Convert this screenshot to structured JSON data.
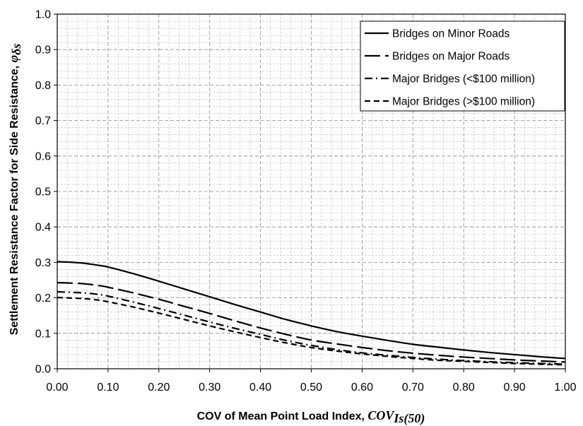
{
  "chart_data": {
    "type": "line",
    "xlabel": "COV of Mean Point Load Index, ",
    "xlabel_symbol": "COV",
    "xlabel_subscript": "Is(50)",
    "ylabel": "Settlement Resistance Factor for Side Resistance, ",
    "ylabel_symbol": "φ",
    "ylabel_subscript": "δs",
    "xlim": [
      0,
      1
    ],
    "ylim": [
      0,
      1
    ],
    "x_ticks": [
      "0.00",
      "0.10",
      "0.20",
      "0.30",
      "0.40",
      "0.50",
      "0.60",
      "0.70",
      "0.80",
      "0.90",
      "1.00"
    ],
    "y_ticks": [
      "0.0",
      "0.1",
      "0.2",
      "0.3",
      "0.4",
      "0.5",
      "0.6",
      "0.7",
      "0.8",
      "0.9",
      "1.0"
    ],
    "grid": true,
    "legend_position": "top-right",
    "series": [
      {
        "name": "Bridges on Minor Roads",
        "dash": "solid",
        "x": [
          0,
          0.02,
          0.05,
          0.08,
          0.1,
          0.15,
          0.2,
          0.25,
          0.3,
          0.35,
          0.4,
          0.45,
          0.5,
          0.55,
          0.6,
          0.65,
          0.7,
          0.75,
          0.8,
          0.85,
          0.9,
          0.95,
          1.0
        ],
        "y": [
          0.302,
          0.301,
          0.298,
          0.292,
          0.287,
          0.268,
          0.247,
          0.225,
          0.203,
          0.181,
          0.16,
          0.139,
          0.121,
          0.105,
          0.092,
          0.08,
          0.069,
          0.061,
          0.053,
          0.046,
          0.04,
          0.034,
          0.029
        ]
      },
      {
        "name": "Bridges on Major Roads",
        "dash": "long-dash",
        "x": [
          0,
          0.02,
          0.05,
          0.08,
          0.1,
          0.15,
          0.2,
          0.25,
          0.3,
          0.35,
          0.4,
          0.45,
          0.5,
          0.55,
          0.6,
          0.65,
          0.7,
          0.75,
          0.8,
          0.85,
          0.9,
          0.95,
          1.0
        ],
        "y": [
          0.243,
          0.242,
          0.24,
          0.235,
          0.23,
          0.214,
          0.196,
          0.176,
          0.156,
          0.135,
          0.115,
          0.097,
          0.081,
          0.07,
          0.06,
          0.051,
          0.044,
          0.038,
          0.033,
          0.029,
          0.025,
          0.022,
          0.019
        ]
      },
      {
        "name": "Major Bridges (<$100 million)",
        "dash": "dash-dot",
        "x": [
          0,
          0.02,
          0.05,
          0.08,
          0.1,
          0.15,
          0.2,
          0.25,
          0.3,
          0.35,
          0.4,
          0.45,
          0.5,
          0.55,
          0.6,
          0.65,
          0.7,
          0.75,
          0.8,
          0.85,
          0.9,
          0.95,
          1.0
        ],
        "y": [
          0.217,
          0.216,
          0.214,
          0.21,
          0.205,
          0.188,
          0.17,
          0.151,
          0.132,
          0.114,
          0.097,
          0.08,
          0.066,
          0.054,
          0.045,
          0.038,
          0.032,
          0.027,
          0.023,
          0.02,
          0.017,
          0.015,
          0.013
        ]
      },
      {
        "name": "Major Bridges (>$100 million)",
        "dash": "short-dash",
        "x": [
          0,
          0.02,
          0.05,
          0.08,
          0.1,
          0.15,
          0.2,
          0.25,
          0.3,
          0.35,
          0.4,
          0.45,
          0.5,
          0.55,
          0.6,
          0.65,
          0.7,
          0.75,
          0.8,
          0.85,
          0.9,
          0.95,
          1.0
        ],
        "y": [
          0.201,
          0.2,
          0.198,
          0.194,
          0.189,
          0.174,
          0.157,
          0.139,
          0.121,
          0.104,
          0.088,
          0.073,
          0.06,
          0.05,
          0.042,
          0.035,
          0.029,
          0.024,
          0.021,
          0.018,
          0.015,
          0.013,
          0.011
        ]
      }
    ]
  }
}
